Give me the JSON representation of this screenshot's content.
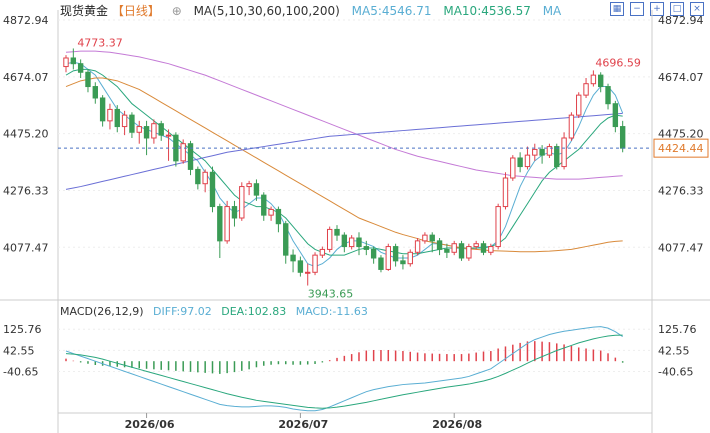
{
  "header": {
    "title": "现货黄金",
    "period": "【日线】",
    "ma_label": "MA(5,10,30,60,100,200)",
    "ma5": "MA5:4546.71",
    "ma10": "MA10:4536.57",
    "ma_more": "MA"
  },
  "macd_header": {
    "label": "MACD(26,12,9)",
    "diff": "DIFF:97.02",
    "dea": "DEA:102.83",
    "macd": "MACD:-11.63"
  },
  "colors": {
    "up": "#e0424b",
    "down": "#3a9b55",
    "ma5": "#5aaed3",
    "ma10": "#2aa77d",
    "ma30": "#d98a3a",
    "ma60": "#c47ad6",
    "ma100": "#6a6fd6",
    "accent": "#4a72c4"
  },
  "icons": [
    "grid-icon",
    "minus-icon",
    "plus-icon",
    "square-icon",
    "close-icon"
  ],
  "chart_data": {
    "type": "candlestick",
    "price_ticks": [
      "4872.94",
      "4674.07",
      "4475.20",
      "4276.33",
      "4077.47"
    ],
    "price_range": [
      3900,
      4872.94
    ],
    "x_labels": [
      "2026/06",
      "2026/07",
      "2026/08"
    ],
    "x_label_index": [
      11,
      32,
      53
    ],
    "last_price": "4424.44",
    "annotations": {
      "high_1": "4773.37",
      "low": "3943.65",
      "high_2": "4696.59"
    },
    "candles": [
      [
        4710,
        4740,
        4690,
        4750
      ],
      [
        4740,
        4720,
        4700,
        4773.37
      ],
      [
        4720,
        4690,
        4670,
        4735
      ],
      [
        4690,
        4640,
        4620,
        4700
      ],
      [
        4640,
        4600,
        4580,
        4655
      ],
      [
        4600,
        4520,
        4500,
        4610
      ],
      [
        4520,
        4560,
        4490,
        4580
      ],
      [
        4560,
        4500,
        4480,
        4575
      ],
      [
        4500,
        4540,
        4470,
        4555
      ],
      [
        4540,
        4480,
        4460,
        4550
      ],
      [
        4480,
        4500,
        4440,
        4520
      ],
      [
        4500,
        4460,
        4400,
        4520
      ],
      [
        4460,
        4510,
        4440,
        4525
      ],
      [
        4510,
        4470,
        4450,
        4520
      ],
      [
        4470,
        4470,
        4380,
        4490
      ],
      [
        4470,
        4380,
        4360,
        4480
      ],
      [
        4380,
        4440,
        4370,
        4455
      ],
      [
        4440,
        4350,
        4330,
        4450
      ],
      [
        4350,
        4300,
        4280,
        4360
      ],
      [
        4300,
        4340,
        4270,
        4350
      ],
      [
        4340,
        4220,
        4200,
        4360
      ],
      [
        4220,
        4100,
        4040,
        4230
      ],
      [
        4100,
        4220,
        4090,
        4240
      ],
      [
        4220,
        4180,
        4150,
        4240
      ],
      [
        4180,
        4290,
        4170,
        4305
      ],
      [
        4290,
        4300,
        4260,
        4310
      ],
      [
        4300,
        4260,
        4240,
        4315
      ],
      [
        4260,
        4190,
        4170,
        4270
      ],
      [
        4190,
        4210,
        4170,
        4220
      ],
      [
        4210,
        4160,
        4130,
        4220
      ],
      [
        4160,
        4050,
        4020,
        4170
      ],
      [
        4050,
        4030,
        3990,
        4070
      ],
      [
        4030,
        3990,
        3975,
        4045
      ],
      [
        3990,
        3990,
        3943.65,
        4020
      ],
      [
        3990,
        4050,
        3980,
        4060
      ],
      [
        4050,
        4070,
        4040,
        4080
      ],
      [
        4070,
        4140,
        4060,
        4150
      ],
      [
        4140,
        4120,
        4100,
        4155
      ],
      [
        4120,
        4080,
        4060,
        4130
      ],
      [
        4080,
        4110,
        4070,
        4120
      ],
      [
        4110,
        4080,
        4050,
        4130
      ],
      [
        4080,
        4070,
        4050,
        4100
      ],
      [
        4070,
        4040,
        4020,
        4080
      ],
      [
        4040,
        4000,
        3990,
        4050
      ],
      [
        4000,
        4080,
        3995,
        4090
      ],
      [
        4080,
        4030,
        4010,
        4090
      ],
      [
        4030,
        4020,
        4000,
        4050
      ],
      [
        4020,
        4060,
        4010,
        4070
      ],
      [
        4060,
        4100,
        4050,
        4110
      ],
      [
        4100,
        4120,
        4090,
        4130
      ],
      [
        4120,
        4100,
        4060,
        4130
      ],
      [
        4100,
        4070,
        4050,
        4110
      ],
      [
        4070,
        4060,
        4040,
        4090
      ],
      [
        4060,
        4090,
        4050,
        4100
      ],
      [
        4090,
        4040,
        4030,
        4100
      ],
      [
        4040,
        4080,
        4030,
        4090
      ],
      [
        4080,
        4090,
        4070,
        4100
      ],
      [
        4090,
        4060,
        4050,
        4100
      ],
      [
        4060,
        4080,
        4050,
        4090
      ],
      [
        4080,
        4220,
        4070,
        4230
      ],
      [
        4220,
        4320,
        4210,
        4340
      ],
      [
        4320,
        4390,
        4310,
        4400
      ],
      [
        4390,
        4360,
        4340,
        4410
      ],
      [
        4360,
        4400,
        4350,
        4430
      ],
      [
        4400,
        4420,
        4380,
        4440
      ],
      [
        4420,
        4400,
        4370,
        4435
      ],
      [
        4400,
        4430,
        4390,
        4440
      ],
      [
        4430,
        4360,
        4350,
        4440
      ],
      [
        4360,
        4460,
        4350,
        4480
      ],
      [
        4460,
        4540,
        4450,
        4550
      ],
      [
        4540,
        4610,
        4530,
        4620
      ],
      [
        4610,
        4650,
        4600,
        4670
      ],
      [
        4650,
        4680,
        4640,
        4696.59
      ],
      [
        4680,
        4640,
        4620,
        4690
      ],
      [
        4640,
        4580,
        4560,
        4650
      ],
      [
        4580,
        4500,
        4480,
        4590
      ],
      [
        4500,
        4424.44,
        4410,
        4520
      ]
    ],
    "series": [
      {
        "name": "MA5",
        "values": [
          4720,
          4725,
          4720,
          4700,
          4680,
          4640,
          4600,
          4560,
          4540,
          4520,
          4500,
          4490,
          4480,
          4470,
          4460,
          4440,
          4420,
          4400,
          4380,
          4340,
          4300,
          4250,
          4220,
          4200,
          4210,
          4230,
          4250,
          4250,
          4230,
          4200,
          4150,
          4100,
          4060,
          4020,
          4010,
          4020,
          4040,
          4070,
          4090,
          4100,
          4100,
          4090,
          4080,
          4060,
          4050,
          4040,
          4040,
          4040,
          4050,
          4070,
          4090,
          4090,
          4085,
          4080,
          4075,
          4070,
          4075,
          4080,
          4080,
          4100,
          4150,
          4220,
          4290,
          4340,
          4380,
          4400,
          4410,
          4400,
          4410,
          4450,
          4500,
          4560,
          4610,
          4640,
          4640,
          4610,
          4546.71
        ]
      },
      {
        "name": "MA10",
        "values": [
          4680,
          4695,
          4700,
          4700,
          4695,
          4680,
          4660,
          4640,
          4610,
          4580,
          4560,
          4540,
          4520,
          4500,
          4480,
          4460,
          4440,
          4420,
          4400,
          4380,
          4350,
          4320,
          4290,
          4260,
          4240,
          4230,
          4220,
          4220,
          4210,
          4200,
          4180,
          4150,
          4120,
          4090,
          4070,
          4060,
          4050,
          4050,
          4050,
          4060,
          4070,
          4075,
          4075,
          4070,
          4065,
          4060,
          4055,
          4055,
          4055,
          4060,
          4065,
          4070,
          4075,
          4075,
          4075,
          4075,
          4075,
          4075,
          4080,
          4090,
          4110,
          4150,
          4190,
          4230,
          4270,
          4310,
          4340,
          4360,
          4380,
          4400,
          4420,
          4450,
          4480,
          4510,
          4530,
          4540,
          4536.57
        ]
      },
      {
        "name": "MA30",
        "values": [
          4640,
          4650,
          4660,
          4665,
          4670,
          4670,
          4665,
          4660,
          4650,
          4640,
          4630,
          4615,
          4600,
          4585,
          4570,
          4555,
          4540,
          4525,
          4510,
          4495,
          4480,
          4465,
          4450,
          4435,
          4420,
          4405,
          4390,
          4375,
          4360,
          4345,
          4330,
          4315,
          4300,
          4285,
          4270,
          4255,
          4240,
          4225,
          4210,
          4195,
          4180,
          4170,
          4160,
          4150,
          4140,
          4130,
          4122,
          4115,
          4108,
          4100,
          4095,
          4090,
          4085,
          4080,
          4076,
          4072,
          4070,
          4068,
          4066,
          4065,
          4064,
          4063,
          4062,
          4062,
          4062,
          4063,
          4064,
          4066,
          4068,
          4070,
          4075,
          4080,
          4085,
          4090,
          4095,
          4098,
          4100
        ]
      },
      {
        "name": "MA60",
        "values": [
          4760,
          4762,
          4764,
          4764,
          4764,
          4762,
          4760,
          4756,
          4752,
          4748,
          4744,
          4738,
          4732,
          4726,
          4720,
          4712,
          4704,
          4696,
          4688,
          4680,
          4670,
          4660,
          4650,
          4640,
          4630,
          4620,
          4610,
          4600,
          4590,
          4580,
          4570,
          4560,
          4550,
          4540,
          4530,
          4520,
          4510,
          4500,
          4490,
          4480,
          4470,
          4460,
          4450,
          4440,
          4430,
          4420,
          4412,
          4404,
          4396,
          4390,
          4384,
          4378,
          4372,
          4366,
          4360,
          4354,
          4348,
          4344,
          4340,
          4336,
          4332,
          4328,
          4326,
          4324,
          4322,
          4320,
          4318,
          4316,
          4316,
          4316,
          4316,
          4318,
          4320,
          4322,
          4324,
          4326,
          4328
        ]
      },
      {
        "name": "MA100",
        "values": [
          4280,
          4285,
          4290,
          4296,
          4302,
          4308,
          4314,
          4320,
          4326,
          4332,
          4338,
          4344,
          4350,
          4356,
          4362,
          4368,
          4374,
          4380,
          4386,
          4392,
          4398,
          4404,
          4410,
          4414,
          4418,
          4422,
          4426,
          4430,
          4434,
          4438,
          4442,
          4446,
          4450,
          4454,
          4458,
          4462,
          4466,
          4468,
          4470,
          4472,
          4474,
          4476,
          4478,
          4480,
          4482,
          4484,
          4486,
          4488,
          4490,
          4492,
          4494,
          4496,
          4498,
          4500,
          4502,
          4504,
          4506,
          4508,
          4510,
          4512,
          4514,
          4516,
          4518,
          4520,
          4522,
          4524,
          4526,
          4528,
          4530,
          4532,
          4534,
          4536,
          4538,
          4540,
          4542,
          4544,
          4546
        ]
      }
    ],
    "macd": {
      "ticks": [
        "125.76",
        "42.55",
        "-40.65"
      ],
      "range": [
        -200,
        170
      ],
      "diff": [
        40,
        30,
        20,
        10,
        0,
        -10,
        -20,
        -30,
        -40,
        -50,
        -60,
        -70,
        -80,
        -90,
        -100,
        -110,
        -120,
        -130,
        -140,
        -150,
        -160,
        -170,
        -175,
        -178,
        -180,
        -180,
        -178,
        -176,
        -176,
        -178,
        -182,
        -188,
        -192,
        -195,
        -195,
        -190,
        -180,
        -168,
        -156,
        -144,
        -132,
        -120,
        -112,
        -106,
        -100,
        -96,
        -92,
        -90,
        -88,
        -86,
        -82,
        -78,
        -74,
        -70,
        -66,
        -60,
        -50,
        -40,
        -30,
        -10,
        10,
        30,
        50,
        70,
        85,
        95,
        105,
        112,
        118,
        122,
        126,
        130,
        134,
        136,
        130,
        116,
        97.02
      ],
      "dea": [
        30,
        28,
        25,
        20,
        15,
        8,
        0,
        -8,
        -16,
        -24,
        -32,
        -40,
        -48,
        -56,
        -64,
        -72,
        -80,
        -88,
        -96,
        -104,
        -112,
        -120,
        -128,
        -135,
        -142,
        -148,
        -154,
        -158,
        -162,
        -166,
        -170,
        -174,
        -178,
        -182,
        -184,
        -185,
        -184,
        -181,
        -177,
        -172,
        -167,
        -162,
        -156,
        -150,
        -144,
        -138,
        -132,
        -127,
        -122,
        -117,
        -112,
        -107,
        -102,
        -98,
        -94,
        -90,
        -84,
        -78,
        -70,
        -60,
        -48,
        -35,
        -22,
        -8,
        6,
        18,
        30,
        42,
        52,
        62,
        72,
        80,
        88,
        94,
        99,
        102,
        102.83
      ],
      "hist": [
        0,
        0,
        0,
        0,
        0,
        0,
        0,
        0,
        0,
        0,
        0,
        0,
        0,
        0,
        0,
        0,
        0,
        0,
        0,
        0,
        0,
        0,
        0,
        0,
        0,
        0,
        0,
        0,
        0,
        0,
        0,
        0,
        0,
        0,
        0,
        0,
        0,
        0,
        0,
        0,
        0,
        0,
        0,
        0,
        0,
        0,
        0,
        0,
        0,
        0,
        0,
        0,
        0,
        0,
        0,
        0,
        0,
        0,
        0,
        0,
        0,
        0,
        0,
        0,
        0,
        0,
        0,
        0,
        0,
        0,
        0,
        0,
        0,
        0,
        0,
        0,
        -11.63
      ]
    }
  }
}
